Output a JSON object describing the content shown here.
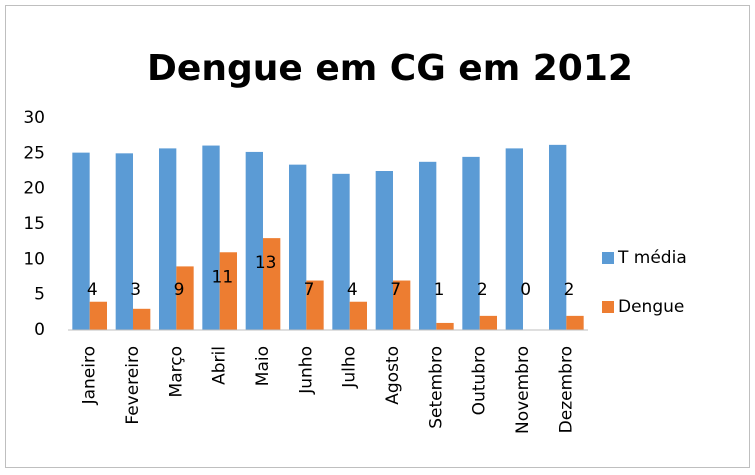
{
  "chart_data": {
    "type": "bar",
    "title": "Dengue em CG em 2012",
    "categories": [
      "Janeiro",
      "Fevereiro",
      "Março",
      "Abril",
      "Maio",
      "Junho",
      "Julho",
      "Agosto",
      "Setembro",
      "Outubro",
      "Novembro",
      "Dezembro"
    ],
    "series": [
      {
        "name": "T média",
        "color": "#5b9bd5",
        "values": [
          25.1,
          25.0,
          25.7,
          26.1,
          25.2,
          23.4,
          22.1,
          22.5,
          23.8,
          24.5,
          25.7,
          26.2
        ]
      },
      {
        "name": "Dengue",
        "color": "#ed7d31",
        "values": [
          4,
          3,
          9,
          11,
          13,
          7,
          4,
          7,
          1,
          2,
          0,
          2
        ],
        "data_labels": true
      }
    ],
    "ylim": [
      0,
      30
    ],
    "yticks": [
      0,
      5,
      10,
      15,
      20,
      25,
      30
    ],
    "grid": false,
    "legend": "right"
  }
}
